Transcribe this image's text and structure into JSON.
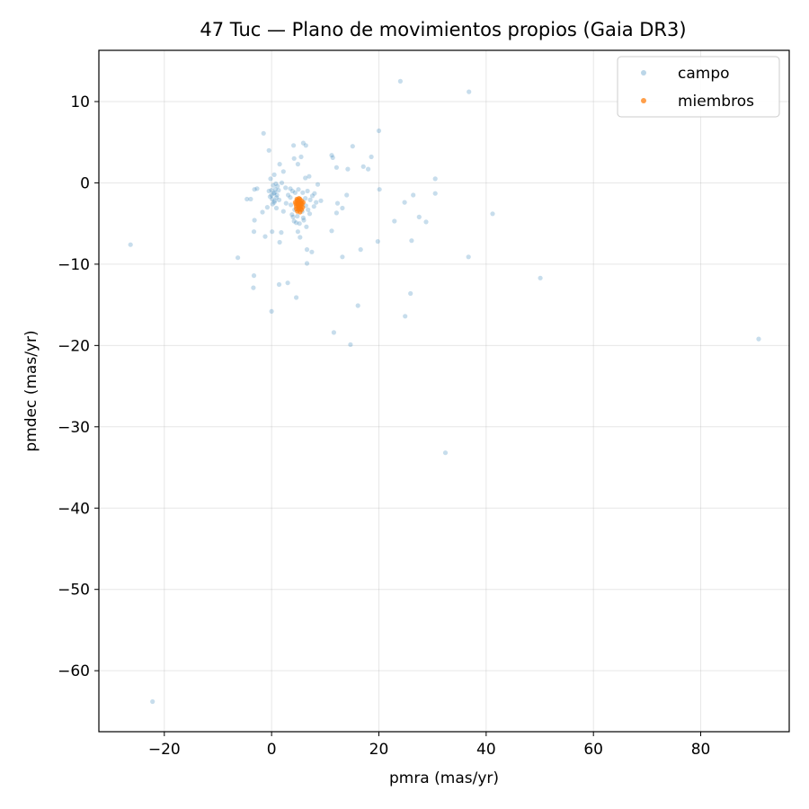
{
  "chart_data": {
    "type": "scatter",
    "title": "47 Tuc — Plano de movimientos propios (Gaia DR3)",
    "xlabel": "pmra (mas/yr)",
    "ylabel": "pmdec (mas/yr)",
    "xlim": [
      -32.2,
      96.5
    ],
    "ylim": [
      -67.5,
      16.3
    ],
    "xticks": [
      -20,
      0,
      20,
      40,
      60,
      80
    ],
    "yticks": [
      -60,
      -50,
      -40,
      -30,
      -20,
      -10,
      0,
      10
    ],
    "grid": true,
    "legend_position": "top-right",
    "series": [
      {
        "name": "campo",
        "color": "#1f77b4",
        "opacity": 0.25,
        "points": [
          [
            -26.3,
            -7.6
          ],
          [
            -22.2,
            -63.8
          ],
          [
            -6.3,
            -9.2
          ],
          [
            -1.5,
            6.1
          ],
          [
            -0.5,
            4.0
          ],
          [
            -0.2,
            0.5
          ],
          [
            0.5,
            1.0
          ],
          [
            1.5,
            2.3
          ],
          [
            2.2,
            1.4
          ],
          [
            4.1,
            4.6
          ],
          [
            5.5,
            3.2
          ],
          [
            5.9,
            4.9
          ],
          [
            6.4,
            4.6
          ],
          [
            4.2,
            3.0
          ],
          [
            4.9,
            2.3
          ],
          [
            6.3,
            0.6
          ],
          [
            7.0,
            0.8
          ],
          [
            8.6,
            -0.2
          ],
          [
            11.2,
            3.4
          ],
          [
            11.4,
            3.1
          ],
          [
            12.1,
            1.9
          ],
          [
            14.2,
            1.7
          ],
          [
            15.1,
            4.5
          ],
          [
            17.1,
            2.0
          ],
          [
            18.0,
            1.7
          ],
          [
            18.6,
            3.2
          ],
          [
            20.0,
            6.4
          ],
          [
            24.0,
            12.5
          ],
          [
            36.8,
            11.2
          ],
          [
            30.5,
            0.5
          ],
          [
            30.5,
            -1.3
          ],
          [
            26.4,
            -1.5
          ],
          [
            24.8,
            -2.4
          ],
          [
            20.1,
            -0.8
          ],
          [
            22.9,
            -4.7
          ],
          [
            27.5,
            -4.2
          ],
          [
            28.8,
            -4.8
          ],
          [
            41.2,
            -3.8
          ],
          [
            26.1,
            -7.1
          ],
          [
            19.8,
            -7.2
          ],
          [
            16.6,
            -8.2
          ],
          [
            13.2,
            -9.1
          ],
          [
            11.2,
            -5.9
          ],
          [
            12.1,
            -3.7
          ],
          [
            13.2,
            -3.1
          ],
          [
            12.3,
            -2.5
          ],
          [
            14.0,
            -1.5
          ],
          [
            36.7,
            -9.1
          ],
          [
            50.1,
            -11.7
          ],
          [
            25.9,
            -13.6
          ],
          [
            16.1,
            -15.1
          ],
          [
            24.9,
            -16.4
          ],
          [
            11.6,
            -18.4
          ],
          [
            14.7,
            -19.9
          ],
          [
            32.4,
            -33.2
          ],
          [
            90.8,
            -19.2
          ],
          [
            -3.9,
            -2.0
          ],
          [
            -4.6,
            -2.0
          ],
          [
            -3.2,
            -0.8
          ],
          [
            -2.7,
            -0.7
          ],
          [
            -3.2,
            -4.6
          ],
          [
            -3.3,
            -6.0
          ],
          [
            -1.2,
            -6.6
          ],
          [
            0.1,
            -6.0
          ],
          [
            1.8,
            -6.1
          ],
          [
            1.5,
            -7.3
          ],
          [
            -3.3,
            -11.4
          ],
          [
            -3.4,
            -12.9
          ],
          [
            1.4,
            -12.5
          ],
          [
            3.0,
            -12.3
          ],
          [
            4.6,
            -14.1
          ],
          [
            0.0,
            -15.8
          ],
          [
            6.6,
            -8.2
          ],
          [
            7.5,
            -8.5
          ],
          [
            6.6,
            -9.9
          ],
          [
            5.3,
            -6.7
          ],
          [
            4.9,
            -6.0
          ],
          [
            6.5,
            -5.4
          ],
          [
            6.0,
            -4.6
          ],
          [
            -1.7,
            -3.6
          ],
          [
            -0.8,
            -3.0
          ],
          [
            0.5,
            -2.4
          ],
          [
            0.9,
            -3.1
          ],
          [
            1.4,
            -2.1
          ],
          [
            2.2,
            -3.5
          ],
          [
            2.7,
            -2.5
          ],
          [
            3.1,
            -1.5
          ],
          [
            3.5,
            -0.7
          ],
          [
            2.6,
            -0.6
          ],
          [
            1.9,
            0.0
          ],
          [
            1.1,
            -0.4
          ],
          [
            -0.5,
            -1.0
          ],
          [
            0.0,
            -1.5
          ],
          [
            0.1,
            -2.0
          ],
          [
            0.6,
            -1.2
          ],
          [
            0.3,
            -0.3
          ],
          [
            0.9,
            -1.8
          ],
          [
            1.3,
            -0.9
          ],
          [
            0.2,
            -2.6
          ],
          [
            0.8,
            -0.1
          ],
          [
            3.8,
            -3.9
          ],
          [
            4.2,
            -4.7
          ],
          [
            4.6,
            -4.9
          ],
          [
            5.2,
            -5.0
          ],
          [
            5.9,
            -4.3
          ],
          [
            6.8,
            -3.3
          ],
          [
            7.2,
            -2.1
          ],
          [
            6.7,
            -1.0
          ],
          [
            7.6,
            -1.6
          ],
          [
            7.9,
            -2.9
          ],
          [
            7.1,
            -3.8
          ],
          [
            3.6,
            -2.7
          ],
          [
            3.5,
            -1.8
          ],
          [
            4.4,
            -1.2
          ],
          [
            5.0,
            -0.8
          ],
          [
            5.8,
            -1.2
          ],
          [
            6.3,
            -1.9
          ],
          [
            6.4,
            -2.8
          ],
          [
            5.7,
            -3.5
          ],
          [
            4.3,
            -3.3
          ],
          [
            4.0,
            -4.2
          ],
          [
            3.9,
            -1.0
          ],
          [
            8.3,
            -2.4
          ],
          [
            8.0,
            -1.3
          ],
          [
            9.2,
            -2.2
          ],
          [
            4.8,
            -4.1
          ],
          [
            0.4,
            -1.3
          ],
          [
            0.0,
            -0.9
          ],
          [
            0.6,
            -2.2
          ],
          [
            1.0,
            -1.5
          ],
          [
            -0.3,
            -1.7
          ],
          [
            0.7,
            -0.8
          ]
        ]
      },
      {
        "name": "miembros",
        "color": "#ff7f0e",
        "opacity": 0.7,
        "points": [
          [
            4.8,
            -2.5
          ],
          [
            5.0,
            -2.3
          ],
          [
            5.2,
            -2.7
          ],
          [
            5.4,
            -2.4
          ],
          [
            4.6,
            -2.9
          ],
          [
            5.1,
            -3.1
          ],
          [
            5.5,
            -2.9
          ],
          [
            4.9,
            -2.1
          ],
          [
            5.3,
            -2.0
          ],
          [
            5.6,
            -2.2
          ],
          [
            4.7,
            -2.2
          ],
          [
            5.0,
            -3.3
          ],
          [
            5.4,
            -3.2
          ],
          [
            4.5,
            -2.6
          ],
          [
            5.7,
            -2.6
          ],
          [
            5.2,
            -2.4
          ],
          [
            4.9,
            -2.7
          ],
          [
            5.1,
            -1.9
          ],
          [
            4.6,
            -3.2
          ],
          [
            5.6,
            -3.3
          ],
          [
            5.0,
            -2.9
          ],
          [
            4.8,
            -3.5
          ],
          [
            5.3,
            -3.6
          ],
          [
            5.8,
            -3.0
          ],
          [
            4.4,
            -2.4
          ],
          [
            5.9,
            -2.4
          ],
          [
            5.2,
            -3.0
          ],
          [
            4.7,
            -2.0
          ],
          [
            5.5,
            -2.6
          ],
          [
            5.0,
            -2.6
          ]
        ]
      }
    ]
  }
}
